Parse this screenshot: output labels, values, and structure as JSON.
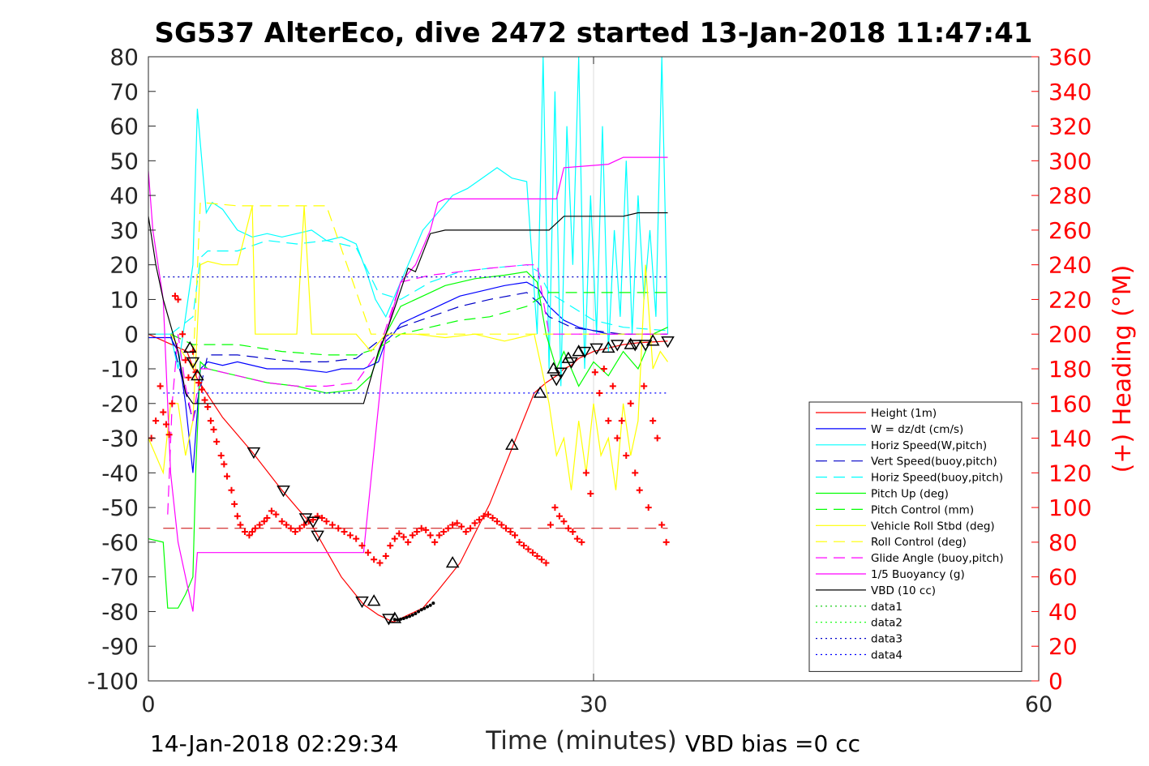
{
  "chart_data": {
    "type": "line",
    "title": "SG537 AlterEco, dive 2472 started 13-Jan-2018 11:47:41",
    "xlabel": "Time (minutes)",
    "ylabel": "",
    "y2label": "(+) Heading (°M)",
    "xlim": [
      0,
      60
    ],
    "ylim": [
      -100,
      80
    ],
    "y2lim": [
      0,
      360
    ],
    "xticks": [
      0,
      30,
      60
    ],
    "yticks": [
      80,
      70,
      60,
      50,
      40,
      30,
      20,
      10,
      0,
      -10,
      -20,
      -30,
      -40,
      -50,
      -60,
      -70,
      -80,
      -90,
      -100
    ],
    "y2ticks": [
      360,
      340,
      320,
      300,
      280,
      260,
      240,
      220,
      200,
      180,
      160,
      140,
      120,
      100,
      80,
      60,
      40,
      20,
      0
    ],
    "grid": "x-only",
    "bottom_left_text": "14-Jan-2018 02:29:34",
    "bottom_right_text": "VBD bias =0 cc",
    "legend_position": "bottom-right",
    "colors": {
      "red": "#ff0000",
      "blue": "#0000ff",
      "cyan": "#00ffff",
      "darkblue": "#0000c8",
      "green": "#00ff00",
      "yellow": "#ffff00",
      "magenta": "#ff00ff",
      "black": "#000000"
    },
    "series": [
      {
        "name": "Height (1m)",
        "color": "#ff0000",
        "dash": "solid",
        "x": [
          0,
          2.6,
          3.3,
          5,
          7,
          9,
          11,
          13,
          14.5,
          15.5,
          16.5,
          17.5,
          18.5,
          19.5,
          21,
          23,
          24.5,
          26,
          26.8,
          27.5,
          28,
          28.5,
          29,
          30,
          31,
          32,
          33,
          35
        ],
        "y": [
          0,
          -5,
          -13,
          -24,
          -34,
          -45,
          -55,
          -70,
          -78,
          -81,
          -83,
          -81,
          -79,
          -74,
          -66,
          -49,
          -33,
          -17,
          -14,
          -12,
          -10,
          -9,
          -7,
          -5,
          -4,
          -3,
          -2.5,
          -2
        ]
      },
      {
        "name": "W = dz/dt (cm/s)",
        "color": "#0000ff",
        "dash": "solid",
        "x": [
          0,
          1.5,
          2,
          2.5,
          3,
          3.5,
          4,
          5,
          6,
          8,
          10,
          12,
          13,
          14.5,
          15.5,
          16,
          16.5,
          17,
          18,
          19,
          20,
          21,
          22,
          24,
          25.5,
          26.3,
          27,
          28,
          29,
          30,
          31,
          33,
          35
        ],
        "y": [
          -1,
          -1,
          -5,
          -20,
          -40,
          -10,
          -8,
          -9,
          -8,
          -10,
          -10,
          -11,
          -10,
          -10,
          -8,
          -2,
          0,
          3,
          5,
          7,
          9,
          11,
          12,
          14,
          15,
          13,
          8,
          4,
          2,
          1,
          0,
          0,
          0
        ]
      },
      {
        "name": "Horiz Speed(W,pitch)",
        "color": "#00ffff",
        "dash": "solid",
        "x": [
          0,
          1.5,
          2,
          2.5,
          3,
          3.3,
          3.6,
          3.9,
          4.3,
          5,
          6,
          7,
          8,
          9,
          10,
          11,
          12,
          13,
          14,
          14.7,
          15.3,
          16,
          16.7,
          17.5,
          18.5,
          19.5,
          20.5,
          21.5,
          22.5,
          23.5,
          24.5,
          25.5,
          26.2,
          26.6,
          27,
          27.4,
          27.8,
          28.2,
          28.6,
          29,
          29.4,
          29.8,
          30.2,
          30.6,
          31,
          31.4,
          31.8,
          32.2,
          32.6,
          33,
          33.4,
          33.8,
          34.2,
          34.6,
          35
        ],
        "y": [
          0,
          0,
          -10,
          5,
          20,
          65,
          50,
          35,
          38,
          36,
          30,
          28,
          29,
          28,
          29,
          30,
          27,
          28,
          26,
          18,
          10,
          5,
          12,
          20,
          30,
          35,
          40,
          42,
          45,
          48,
          45,
          44,
          0,
          80,
          -10,
          70,
          -15,
          60,
          20,
          80,
          -10,
          40,
          0,
          60,
          -5,
          30,
          5,
          50,
          0,
          40,
          10,
          30,
          5,
          80,
          0
        ]
      },
      {
        "name": "Vert Speed(buoy,pitch)",
        "color": "#0000c8",
        "dash": "dash",
        "x": [
          1.5,
          3,
          4,
          6,
          8,
          10,
          12,
          14,
          15.5,
          17,
          19,
          21,
          23,
          25.5,
          26.3,
          27,
          28.5,
          30,
          32,
          35
        ],
        "y": [
          0,
          -25,
          -6,
          -6,
          -7,
          -8,
          -8,
          -7,
          -2,
          2,
          5,
          8,
          10,
          12,
          9,
          5,
          2,
          1,
          0,
          0
        ]
      },
      {
        "name": "Horiz Speed(buoy,pitch)",
        "color": "#00ffff",
        "dash": "dash",
        "x": [
          1.5,
          3,
          3.5,
          4,
          6,
          8,
          10,
          12,
          14,
          15.5,
          17,
          19,
          21,
          23,
          25.5,
          26.3,
          27,
          28.5,
          30,
          32,
          35
        ],
        "y": [
          0,
          5,
          22,
          24,
          24,
          27,
          26,
          27,
          25,
          12,
          10,
          15,
          18,
          19,
          20,
          18,
          12,
          8,
          4,
          2,
          1
        ]
      },
      {
        "name": "Pitch Up (deg)",
        "color": "#00ff00",
        "dash": "solid",
        "x": [
          0,
          1,
          1.3,
          2,
          2.5,
          3,
          3.2,
          3.5,
          4,
          5,
          6,
          8,
          10,
          12,
          14,
          15,
          16,
          17,
          18,
          19,
          20,
          22,
          24,
          25.5,
          26.2,
          26.8,
          27.5,
          28,
          29,
          30,
          31,
          32,
          33,
          34,
          35
        ],
        "y": [
          -59,
          -60,
          -79,
          -79,
          -75,
          -70,
          -38,
          -8,
          -10,
          -11,
          -12,
          -14,
          -15,
          -17,
          -16,
          -12,
          0,
          8,
          10,
          12,
          14,
          16,
          17,
          18,
          15,
          0,
          -10,
          -5,
          -15,
          -8,
          -12,
          -5,
          -10,
          0,
          2
        ]
      },
      {
        "name": "Pitch Control (mm)",
        "color": "#00ff00",
        "dash": "dash",
        "x": [
          1.5,
          3,
          3.5,
          6,
          9,
          12,
          14,
          15.5,
          17,
          19,
          21,
          23,
          25.5,
          26.2,
          27,
          30,
          35
        ],
        "y": [
          0,
          -3,
          -3,
          -3,
          -5,
          -6,
          -6,
          -4,
          0,
          2,
          4,
          5,
          8,
          10,
          12,
          12,
          12
        ]
      },
      {
        "name": "Vehicle Roll Stbd (deg)",
        "color": "#ffff00",
        "dash": "solid",
        "x": [
          0,
          1,
          1.5,
          2,
          2.5,
          3,
          3.5,
          4,
          5,
          6,
          7,
          7.2,
          8,
          9,
          10,
          10.5,
          11,
          12,
          13,
          14,
          15,
          16,
          18,
          20,
          22,
          24,
          26,
          26.5,
          27,
          27.5,
          28,
          28.5,
          29,
          29.5,
          30,
          30.5,
          31,
          31.5,
          32,
          32.5,
          33,
          33.5,
          34,
          34.5,
          35
        ],
        "y": [
          -30,
          -40,
          -20,
          -20,
          -35,
          -25,
          20,
          21,
          20,
          20,
          37,
          0,
          0,
          0,
          0,
          37,
          0,
          0,
          0,
          0,
          -5,
          0,
          0,
          -1,
          0,
          -2,
          0,
          -10,
          -20,
          -35,
          -30,
          -45,
          -25,
          -40,
          -20,
          -35,
          -30,
          -45,
          -20,
          -35,
          -25,
          20,
          -10,
          -5,
          -8
        ]
      },
      {
        "name": "Roll Control (deg)",
        "color": "#ffff00",
        "dash": "dash",
        "x": [
          1.5,
          3,
          3.5,
          6,
          8,
          12,
          15,
          20,
          26,
          30,
          35
        ],
        "y": [
          0,
          -10,
          38,
          37,
          37,
          37,
          0,
          0,
          0,
          0,
          0
        ]
      },
      {
        "name": "Glide Angle (buoy,pitch)",
        "color": "#ff00ff",
        "dash": "dash",
        "x": [
          1.3,
          1.6,
          2,
          2.5,
          3,
          3.5,
          4,
          6,
          8,
          10,
          12,
          14,
          15.5,
          17,
          19,
          21,
          23,
          25.5,
          26.2,
          27,
          30,
          35
        ],
        "y": [
          -52,
          -20,
          0,
          -15,
          -25,
          -10,
          -10,
          -12,
          -14,
          -15,
          -15,
          -14,
          -5,
          15,
          17,
          18,
          19,
          20,
          20,
          0,
          0,
          0
        ]
      },
      {
        "name": "1/5 Buoyancy (g)",
        "color": "#ff00ff",
        "dash": "solid",
        "x": [
          0,
          0.3,
          1,
          1.5,
          2,
          2.5,
          3,
          3.3,
          5,
          10,
          14.5,
          16,
          17,
          18,
          19,
          19.5,
          20,
          26.5,
          27.5,
          28,
          31,
          32,
          35
        ],
        "y": [
          47,
          30,
          10,
          -40,
          -60,
          -70,
          -80,
          -63,
          -63,
          -63,
          -63,
          0,
          15,
          20,
          30,
          38,
          39,
          39,
          39,
          48,
          49,
          51,
          51
        ]
      },
      {
        "name": "VBD (10 cc)",
        "color": "#000000",
        "dash": "solid",
        "x": [
          0,
          0.5,
          1,
          2,
          2.5,
          3,
          3.5,
          5,
          10,
          14.5,
          15.5,
          16,
          17.5,
          18,
          19,
          20,
          26,
          27,
          28,
          30,
          32,
          33,
          35
        ],
        "y": [
          34,
          20,
          10,
          -5,
          -17,
          -20,
          -20,
          -20,
          -20,
          -20,
          -5,
          0,
          19,
          18,
          29,
          30,
          30,
          30,
          34,
          34,
          34,
          35,
          35
        ]
      },
      {
        "name": "data1",
        "color": "#00c800",
        "dash": "dot",
        "x": [],
        "y": []
      },
      {
        "name": "data2",
        "color": "#00ff00",
        "dash": "dot",
        "x": [],
        "y": []
      },
      {
        "name": "data3",
        "color": "#0000c8",
        "dash": "dot",
        "x": [
          1,
          35
        ],
        "y": [
          16.5,
          16.5
        ]
      },
      {
        "name": "data4",
        "color": "#0000ff",
        "dash": "dot",
        "x": [
          1,
          35
        ],
        "y": [
          -17,
          -17
        ]
      }
    ],
    "reference_lines": [
      {
        "axis": "y2",
        "value": 88,
        "color": "#c80000",
        "dash": "dash",
        "x": [
          1,
          35
        ]
      }
    ],
    "triangle_markers": {
      "up": {
        "x": [
          2.8,
          3.3,
          15.2,
          16.6,
          20.5,
          24.5,
          26.4,
          27.3,
          28.3,
          29.0,
          31.0,
          32.5,
          34.0
        ],
        "y": [
          -4,
          -12,
          -77,
          -82,
          -66,
          -32,
          -17,
          -10,
          -7,
          -5,
          -4,
          -3,
          -2
        ]
      },
      "down": {
        "x": [
          3.0,
          7.1,
          9.1,
          10.6,
          11.1,
          11.4,
          14.4,
          16.2,
          27.5,
          27.8,
          28.5,
          29.4,
          30.2,
          31.6,
          32.8,
          33.5,
          35.0
        ],
        "y": [
          -8,
          -34,
          -45,
          -53,
          -54,
          -58,
          -77,
          -82,
          -13,
          -11,
          -8,
          -5,
          -4,
          -3,
          -3,
          -3,
          -2
        ]
      }
    },
    "dot_markers": {
      "x": [
        16.6,
        16.8,
        17.0,
        17.2,
        17.4,
        17.6,
        17.8,
        18.0,
        18.2,
        18.4,
        18.6,
        18.8,
        19.0,
        19.2
      ],
      "y": [
        -82.3,
        -82.4,
        -82.2,
        -82.0,
        -81.7,
        -81.4,
        -81.0,
        -80.6,
        -80.0,
        -79.5,
        -79.1,
        -78.6,
        -78.2,
        -77.6
      ]
    },
    "heading_markers": {
      "axis": "y2",
      "x": [
        0.2,
        0.5,
        0.8,
        1.0,
        1.2,
        1.4,
        1.6,
        1.8,
        2.0,
        2.3,
        2.5,
        2.7,
        3.0,
        3.2,
        3.4,
        3.6,
        3.8,
        4.0,
        4.2,
        4.4,
        4.6,
        4.9,
        5.1,
        5.3,
        5.6,
        5.8,
        6.0,
        6.2,
        6.5,
        6.8,
        7.0,
        7.2,
        7.5,
        7.8,
        8.0,
        8.3,
        8.6,
        9.0,
        9.3,
        9.6,
        9.9,
        10.2,
        10.5,
        10.8,
        11.1,
        11.4,
        11.7,
        12.0,
        12.4,
        12.8,
        13.2,
        13.6,
        14.0,
        14.4,
        14.8,
        15.2,
        15.6,
        16.0,
        16.3,
        16.6,
        16.9,
        17.2,
        17.5,
        17.8,
        18.1,
        18.4,
        18.7,
        19.0,
        19.3,
        19.6,
        19.9,
        20.2,
        20.5,
        20.8,
        21.1,
        21.4,
        21.7,
        22.0,
        22.3,
        22.6,
        22.9,
        23.2,
        23.5,
        23.8,
        24.1,
        24.4,
        24.7,
        25.0,
        25.3,
        25.6,
        25.9,
        26.2,
        26.5,
        26.8,
        27.1,
        27.4,
        27.7,
        28.0,
        28.3,
        28.6,
        28.9,
        29.2,
        29.5,
        29.8,
        30.1,
        30.4,
        30.7,
        31.0,
        31.3,
        31.6,
        31.9,
        32.2,
        32.5,
        32.8,
        33.1,
        33.4,
        33.7,
        34.0,
        34.3,
        34.6,
        34.9
      ],
      "y": [
        140,
        150,
        170,
        155,
        148,
        142,
        160,
        222,
        220,
        200,
        185,
        175,
        190,
        178,
        172,
        168,
        162,
        158,
        150,
        145,
        138,
        130,
        125,
        118,
        110,
        102,
        95,
        90,
        86,
        84,
        86,
        88,
        90,
        92,
        94,
        98,
        96,
        92,
        90,
        88,
        86,
        88,
        90,
        92,
        93,
        95,
        94,
        92,
        90,
        88,
        86,
        84,
        82,
        78,
        74,
        70,
        68,
        72,
        78,
        82,
        85,
        83,
        80,
        84,
        86,
        88,
        87,
        84,
        80,
        84,
        86,
        88,
        90,
        91,
        89,
        86,
        88,
        91,
        93,
        95,
        96,
        94,
        92,
        90,
        88,
        86,
        84,
        80,
        78,
        76,
        74,
        72,
        70,
        68,
        90,
        100,
        95,
        92,
        88,
        86,
        82,
        80,
        120,
        108,
        178,
        166,
        180,
        150,
        170,
        140,
        150,
        130,
        160,
        120,
        110,
        170,
        100,
        150,
        140,
        90,
        80
      ]
    }
  }
}
